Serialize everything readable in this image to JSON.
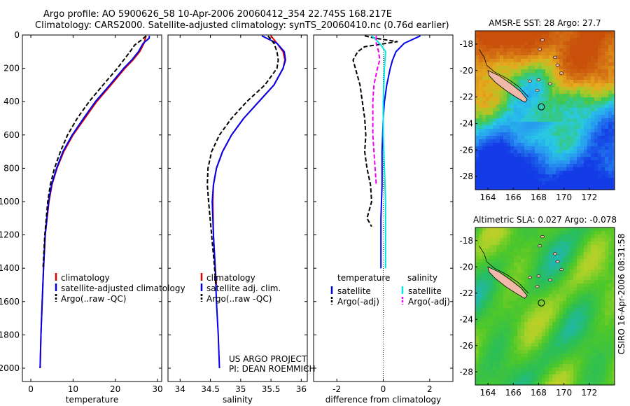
{
  "header": {
    "title_line1": "Argo profile: AO 5900626_58 10-Apr-2006 20060412_354 22.745S 168.217E",
    "title_line2": "Climatology: CARS2000. Satellite-adjusted climatology: synTS_20060410.nc (0.76d earlier)"
  },
  "colors": {
    "climatology": "#e00000",
    "satellite": "#0000ee",
    "argo": "#000000",
    "salinity_satellite": "#00e5e5",
    "salinity_argo": "#ee00ee",
    "coast_fill": "#f0b8a8"
  },
  "chart_data": [
    {
      "type": "line",
      "name": "temperature-profile",
      "xlabel": "temperature",
      "ylabel": "",
      "xlim": [
        -2,
        31
      ],
      "ylim": [
        2080,
        0
      ],
      "xticks": [
        0,
        10,
        20,
        30
      ],
      "yticks": [
        0,
        200,
        400,
        600,
        800,
        1000,
        1200,
        1400,
        1600,
        1800,
        2000
      ],
      "legend": [
        "climatology",
        "satellite-adjusted climatology",
        "Argo(..raw -QC)"
      ],
      "series": [
        {
          "name": "climatology",
          "color": "#e00000",
          "dash": "none",
          "depth": [
            5,
            50,
            100,
            150,
            200,
            300,
            400,
            500,
            600,
            700,
            800,
            900,
            1000,
            1200,
            1400,
            1600,
            1800,
            2000
          ],
          "values": [
            27.3,
            26.8,
            25.8,
            24.2,
            22.3,
            19.0,
            15.6,
            12.8,
            10.0,
            7.8,
            6.2,
            5.0,
            4.3,
            3.4,
            3.0,
            2.7,
            2.4,
            2.2
          ]
        },
        {
          "name": "satellite-adjusted climatology",
          "color": "#0000ee",
          "dash": "none",
          "depth": [
            5,
            20,
            50,
            100,
            150,
            200,
            300,
            400,
            500,
            600,
            700,
            800,
            900,
            1000,
            1200,
            1400,
            1600,
            1800,
            2000
          ],
          "values": [
            28.1,
            28.0,
            26.6,
            25.5,
            23.9,
            22.0,
            18.7,
            15.3,
            12.5,
            9.8,
            7.6,
            6.1,
            4.9,
            4.2,
            3.4,
            3.0,
            2.7,
            2.4,
            2.2
          ]
        },
        {
          "name": "Argo(..raw -QC)",
          "color": "#000000",
          "dash": "6,3",
          "depth": [
            5,
            30,
            60,
            100,
            150,
            200,
            300,
            400,
            500,
            600,
            700,
            800,
            900,
            1000,
            1200,
            1400
          ],
          "values": [
            27.3,
            26.2,
            24.6,
            23.5,
            22.0,
            20.5,
            17.1,
            13.8,
            11.0,
            8.7,
            7.0,
            5.6,
            4.6,
            4.0,
            3.3,
            2.9
          ]
        }
      ]
    },
    {
      "type": "line",
      "name": "salinity-profile",
      "xlabel": "salinity",
      "ylabel": "",
      "xlim": [
        33.8,
        36.1
      ],
      "ylim": [
        2080,
        0
      ],
      "xticks": [
        34,
        34.5,
        35,
        35.5,
        36
      ],
      "legend": [
        "climatology",
        "satellite adj. clim.",
        "Argo(..raw -QC)"
      ],
      "annotation": [
        "US ARGO PROJECT",
        "PI: DEAN ROEMMICH"
      ],
      "series": [
        {
          "name": "climatology",
          "color": "#e00000",
          "dash": "none",
          "depth": [
            5,
            50,
            100,
            150,
            200,
            300,
            400,
            500,
            600,
            700,
            800,
            900,
            1000,
            1200,
            1400,
            1500
          ],
          "values": [
            35.5,
            35.6,
            35.7,
            35.73,
            35.7,
            35.55,
            35.3,
            35.05,
            34.85,
            34.7,
            34.6,
            34.55,
            34.54,
            34.55,
            34.58,
            34.6
          ]
        },
        {
          "name": "satellite adj. clim.",
          "color": "#0000ee",
          "dash": "none",
          "depth": [
            5,
            50,
            100,
            150,
            200,
            300,
            400,
            500,
            600,
            700,
            800,
            900,
            1000,
            1200,
            1400,
            1600,
            1800,
            2000
          ],
          "values": [
            35.35,
            35.6,
            35.72,
            35.74,
            35.7,
            35.55,
            35.3,
            35.05,
            34.85,
            34.7,
            34.6,
            34.55,
            34.53,
            34.55,
            34.58,
            34.6,
            34.63,
            34.65
          ]
        },
        {
          "name": "Argo(..raw -QC)",
          "color": "#000000",
          "dash": "6,3",
          "depth": [
            5,
            50,
            100,
            150,
            200,
            300,
            400,
            500,
            600,
            700,
            800,
            900,
            1000,
            1200,
            1400,
            1500
          ],
          "values": [
            35.45,
            35.55,
            35.6,
            35.62,
            35.6,
            35.4,
            35.1,
            34.85,
            34.65,
            34.52,
            34.46,
            34.45,
            34.47,
            34.52,
            34.57,
            34.59
          ]
        }
      ]
    },
    {
      "type": "line",
      "name": "difference-profile",
      "xlabel": "difference from climatology",
      "ylabel": "",
      "xlim": [
        -3,
        3
      ],
      "ylim": [
        2080,
        0
      ],
      "xticks": [
        -2,
        0,
        2
      ],
      "legend_headers": [
        "temperature",
        "salinity"
      ],
      "legend": [
        "satellite",
        "Argo(-adj)",
        "satellite",
        "Argo(-adj)"
      ],
      "series": [
        {
          "name": "temperature satellite",
          "color": "#0000ee",
          "dash": "none",
          "depth": [
            5,
            50,
            100,
            150,
            200,
            300,
            400,
            500,
            700,
            900,
            1100,
            1300,
            1400
          ],
          "values": [
            1.6,
            0.9,
            0.55,
            0.4,
            0.3,
            0.15,
            0.05,
            0.0,
            -0.05,
            -0.05,
            -0.1,
            -0.1,
            -0.1
          ]
        },
        {
          "name": "temperature Argo(-adj)",
          "color": "#000000",
          "dash": "6,3",
          "depth": [
            5,
            20,
            40,
            70,
            100,
            150,
            200,
            300,
            400,
            500,
            600,
            700,
            800,
            900,
            1000,
            1100,
            1150
          ],
          "values": [
            -0.8,
            -0.3,
            0.6,
            -0.8,
            -1.1,
            -1.3,
            -1.2,
            -1.0,
            -0.9,
            -0.8,
            -0.75,
            -0.8,
            -0.7,
            -0.55,
            -0.5,
            -0.7,
            -0.5
          ]
        },
        {
          "name": "salinity satellite",
          "color": "#00e5e5",
          "dash": "none",
          "depth": [
            5,
            30,
            60,
            100,
            200,
            400,
            600,
            800,
            1000,
            1200,
            1400
          ],
          "values": [
            -0.5,
            -0.3,
            -0.1,
            0.1,
            0.05,
            0.0,
            0.0,
            0.05,
            0.1,
            0.1,
            0.1
          ]
        },
        {
          "name": "salinity Argo(-adj)",
          "color": "#ee00ee",
          "dash": "6,3",
          "depth": [
            5,
            50,
            100,
            150,
            200,
            300,
            400,
            500,
            600,
            700,
            800,
            900
          ],
          "values": [
            -0.3,
            -0.3,
            -0.2,
            -0.15,
            -0.25,
            -0.4,
            -0.45,
            -0.45,
            -0.45,
            -0.4,
            -0.35,
            -0.3
          ]
        }
      ]
    },
    {
      "type": "heatmap",
      "name": "amsr-sst-map",
      "title": "AMSR-E SST: 28 Argo: 27.7",
      "xlim": [
        163,
        174
      ],
      "ylim": [
        -29,
        -17
      ],
      "xticks": [
        164,
        166,
        168,
        170,
        172
      ],
      "yticks": [
        -18,
        -20,
        -22,
        -24,
        -26,
        -28
      ],
      "argo_position": [
        168.217,
        -22.745
      ]
    },
    {
      "type": "heatmap",
      "name": "altimetric-sla-map",
      "title": "Altimetric SLA: 0.027 Argo: -0.078",
      "xlim": [
        163,
        174
      ],
      "ylim": [
        -29,
        -17
      ],
      "xticks": [
        164,
        166,
        168,
        170,
        172
      ],
      "yticks": [
        -18,
        -20,
        -22,
        -24,
        -26,
        -28
      ],
      "argo_position": [
        168.217,
        -22.745
      ]
    }
  ],
  "footer": {
    "credit": "CSIRO 16-Apr-2006 08:31:58"
  }
}
